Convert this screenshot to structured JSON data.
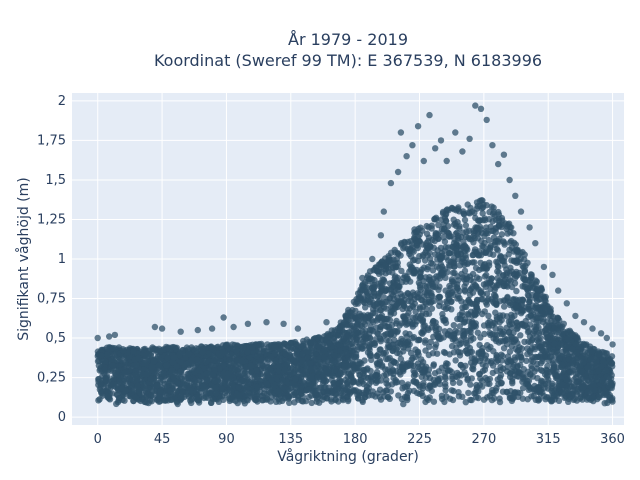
{
  "chart_data": {
    "type": "scatter",
    "title": "År 1979 - 2019",
    "subtitle": "Koordinat (Sweref 99 TM): E 367539, N 6183996",
    "xlabel": "Vågriktning (grader)",
    "ylabel": "Signifikant våghöjd (m)",
    "xlim": [
      -18,
      368
    ],
    "ylim": [
      -0.05,
      2.05
    ],
    "x_ticks": [
      0,
      45,
      90,
      135,
      180,
      225,
      270,
      315,
      360
    ],
    "x_tick_labels": [
      "0",
      "45",
      "90",
      "135",
      "180",
      "225",
      "270",
      "315",
      "360"
    ],
    "y_ticks": [
      0,
      0.25,
      0.5,
      0.75,
      1,
      1.25,
      1.5,
      1.75,
      2
    ],
    "y_tick_labels": [
      "0",
      "0,25",
      "0,5",
      "0,75",
      "1",
      "1,25",
      "1,5",
      "1,75",
      "2"
    ],
    "grid": true,
    "marker_color": "#2f5169",
    "plot_background": "#e5ecf6",
    "envelope": {
      "direction": [
        0,
        10,
        20,
        30,
        45,
        60,
        75,
        90,
        105,
        120,
        135,
        150,
        160,
        170,
        180,
        190,
        200,
        210,
        220,
        230,
        240,
        250,
        260,
        270,
        280,
        290,
        300,
        310,
        320,
        330,
        340,
        350,
        360
      ],
      "typical_max_height": [
        0.43,
        0.45,
        0.44,
        0.43,
        0.45,
        0.44,
        0.45,
        0.46,
        0.46,
        0.47,
        0.47,
        0.5,
        0.52,
        0.6,
        0.75,
        0.92,
        1.0,
        1.08,
        1.18,
        1.24,
        1.3,
        1.33,
        1.35,
        1.38,
        1.3,
        1.2,
        1.0,
        0.82,
        0.65,
        0.55,
        0.47,
        0.42,
        0.4
      ],
      "min_height": 0.08
    },
    "outliers": [
      {
        "x": 0,
        "y": 0.5
      },
      {
        "x": 8,
        "y": 0.51
      },
      {
        "x": 12,
        "y": 0.52
      },
      {
        "x": 40,
        "y": 0.57
      },
      {
        "x": 45,
        "y": 0.56
      },
      {
        "x": 58,
        "y": 0.54
      },
      {
        "x": 70,
        "y": 0.55
      },
      {
        "x": 80,
        "y": 0.56
      },
      {
        "x": 88,
        "y": 0.63
      },
      {
        "x": 95,
        "y": 0.57
      },
      {
        "x": 105,
        "y": 0.59
      },
      {
        "x": 118,
        "y": 0.6
      },
      {
        "x": 130,
        "y": 0.59
      },
      {
        "x": 140,
        "y": 0.56
      },
      {
        "x": 160,
        "y": 0.6
      },
      {
        "x": 175,
        "y": 0.66
      },
      {
        "x": 185,
        "y": 0.88
      },
      {
        "x": 192,
        "y": 1.0
      },
      {
        "x": 198,
        "y": 1.15
      },
      {
        "x": 200,
        "y": 1.3
      },
      {
        "x": 205,
        "y": 1.48
      },
      {
        "x": 210,
        "y": 1.55
      },
      {
        "x": 212,
        "y": 1.8
      },
      {
        "x": 216,
        "y": 1.65
      },
      {
        "x": 220,
        "y": 1.72
      },
      {
        "x": 224,
        "y": 1.84
      },
      {
        "x": 228,
        "y": 1.62
      },
      {
        "x": 232,
        "y": 1.91
      },
      {
        "x": 236,
        "y": 1.7
      },
      {
        "x": 240,
        "y": 1.75
      },
      {
        "x": 244,
        "y": 1.62
      },
      {
        "x": 250,
        "y": 1.8
      },
      {
        "x": 255,
        "y": 1.68
      },
      {
        "x": 260,
        "y": 1.76
      },
      {
        "x": 264,
        "y": 1.97
      },
      {
        "x": 268,
        "y": 1.95
      },
      {
        "x": 272,
        "y": 1.88
      },
      {
        "x": 276,
        "y": 1.72
      },
      {
        "x": 280,
        "y": 1.6
      },
      {
        "x": 284,
        "y": 1.66
      },
      {
        "x": 288,
        "y": 1.5
      },
      {
        "x": 292,
        "y": 1.4
      },
      {
        "x": 296,
        "y": 1.3
      },
      {
        "x": 302,
        "y": 1.2
      },
      {
        "x": 306,
        "y": 1.1
      },
      {
        "x": 312,
        "y": 0.95
      },
      {
        "x": 318,
        "y": 0.9
      },
      {
        "x": 322,
        "y": 0.8
      },
      {
        "x": 328,
        "y": 0.72
      },
      {
        "x": 334,
        "y": 0.64
      },
      {
        "x": 340,
        "y": 0.6
      },
      {
        "x": 346,
        "y": 0.56
      },
      {
        "x": 352,
        "y": 0.53
      },
      {
        "x": 356,
        "y": 0.5
      },
      {
        "x": 360,
        "y": 0.46
      }
    ]
  }
}
